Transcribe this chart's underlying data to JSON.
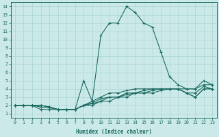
{
  "xlabel": "Humidex (Indice chaleur)",
  "bg_color": "#cce9e9",
  "grid_color": "#aad4d4",
  "line_color": "#1a6b60",
  "xlim": [
    -0.5,
    23.5
  ],
  "ylim": [
    0.5,
    14.5
  ],
  "xticks": [
    0,
    1,
    2,
    3,
    4,
    5,
    6,
    7,
    8,
    9,
    10,
    11,
    12,
    13,
    14,
    15,
    16,
    17,
    18,
    19,
    20,
    21,
    22,
    23
  ],
  "yticks": [
    1,
    2,
    3,
    4,
    5,
    6,
    7,
    8,
    9,
    10,
    11,
    12,
    13,
    14
  ],
  "lines": [
    {
      "x": [
        0,
        1,
        2,
        3,
        4,
        5,
        6,
        7,
        8,
        9,
        10,
        11,
        12,
        13,
        14,
        15,
        16,
        17,
        18,
        19,
        20,
        21,
        22,
        23
      ],
      "y": [
        2,
        2,
        2,
        1.5,
        1.5,
        1.5,
        1.5,
        1.5,
        5,
        2.5,
        10.5,
        12,
        12,
        14,
        13.3,
        12,
        11.5,
        8.5,
        5.5,
        4.5,
        4,
        4,
        5,
        4.5
      ]
    },
    {
      "x": [
        0,
        1,
        2,
        3,
        4,
        5,
        6,
        7,
        8,
        9,
        10,
        11,
        12,
        13,
        14,
        15,
        16,
        17,
        18,
        19,
        20,
        21,
        22,
        23
      ],
      "y": [
        2,
        2,
        2,
        2,
        1.8,
        1.5,
        1.5,
        1.5,
        2,
        2.5,
        3,
        3.5,
        3.5,
        3.8,
        4,
        4,
        4,
        4,
        4,
        4,
        4,
        4,
        4.5,
        4.5
      ]
    },
    {
      "x": [
        0,
        1,
        2,
        3,
        4,
        5,
        6,
        7,
        8,
        9,
        10,
        11,
        12,
        13,
        14,
        15,
        16,
        17,
        18,
        19,
        20,
        21,
        22,
        23
      ],
      "y": [
        2,
        2,
        2,
        2,
        1.8,
        1.5,
        1.5,
        1.5,
        2,
        2.3,
        2.8,
        3,
        3,
        3.5,
        3.5,
        3.8,
        4,
        4,
        4,
        4,
        3.5,
        3.5,
        4.3,
        4
      ]
    },
    {
      "x": [
        0,
        1,
        2,
        3,
        4,
        5,
        6,
        7,
        8,
        9,
        10,
        11,
        12,
        13,
        14,
        15,
        16,
        17,
        18,
        19,
        20,
        21,
        22,
        23
      ],
      "y": [
        2,
        2,
        2,
        2,
        1.8,
        1.5,
        1.5,
        1.5,
        2,
        2.2,
        2.5,
        3,
        3,
        3.3,
        3.5,
        3.5,
        3.8,
        4,
        4,
        4,
        3.5,
        3,
        4,
        4
      ]
    },
    {
      "x": [
        0,
        1,
        2,
        3,
        4,
        5,
        6,
        7,
        8,
        9,
        10,
        11,
        12,
        13,
        14,
        15,
        16,
        17,
        18,
        19,
        20,
        21,
        22,
        23
      ],
      "y": [
        2,
        2,
        2,
        1.8,
        1.7,
        1.5,
        1.5,
        1.5,
        2,
        2,
        2.5,
        2.5,
        3,
        3,
        3.5,
        3.5,
        3.5,
        3.8,
        4,
        4,
        3.5,
        3,
        4,
        4
      ]
    }
  ]
}
